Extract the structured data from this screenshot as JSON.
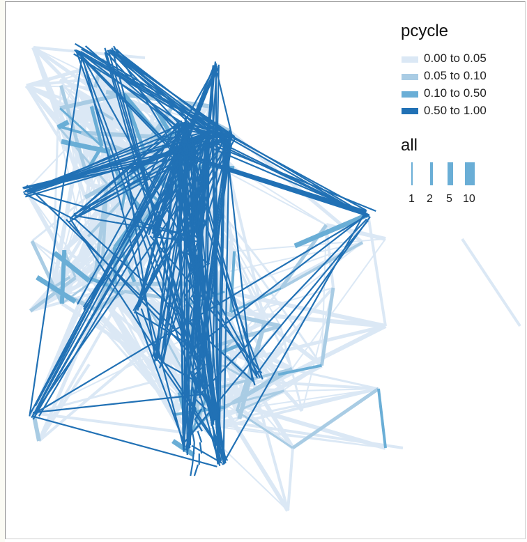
{
  "chart_data": {
    "type": "network",
    "legend": {
      "color": {
        "title": "pcycle",
        "entries": [
          {
            "label": "0.00 to 0.05",
            "color": "#dbe8f5"
          },
          {
            "label": "0.05 to 0.10",
            "color": "#a9cce4"
          },
          {
            "label": "0.10 to 0.50",
            "color": "#6aaed6"
          },
          {
            "label": "0.50 to 1.00",
            "color": "#2171b5"
          }
        ]
      },
      "width": {
        "title": "all",
        "entries": [
          {
            "label": "1",
            "value": 1
          },
          {
            "label": "2",
            "value": 2
          },
          {
            "label": "5",
            "value": 5
          },
          {
            "label": "10",
            "value": 10
          }
        ]
      }
    },
    "grid": false,
    "axes": false,
    "legend_position": "top-right"
  }
}
